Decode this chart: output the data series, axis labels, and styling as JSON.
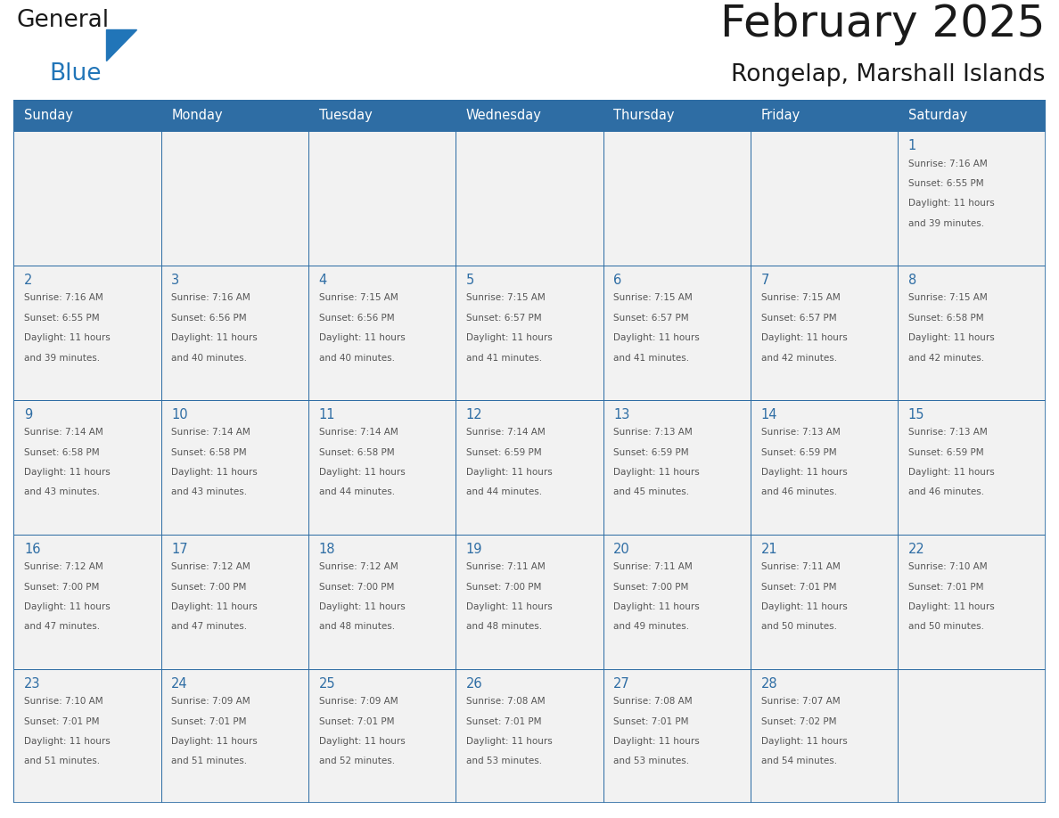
{
  "title": "February 2025",
  "subtitle": "Rongelap, Marshall Islands",
  "days_of_week": [
    "Sunday",
    "Monday",
    "Tuesday",
    "Wednesday",
    "Thursday",
    "Friday",
    "Saturday"
  ],
  "header_bg": "#2E6DA4",
  "header_text": "#FFFFFF",
  "cell_bg": "#F2F2F2",
  "text_color": "#555555",
  "date_color": "#2E6DA4",
  "border_color": "#2E6DA4",
  "title_color": "#1a1a1a",
  "logo_general_color": "#1a1a1a",
  "logo_blue_color": "#2175B8",
  "weeks": [
    [
      null,
      null,
      null,
      null,
      null,
      null,
      1
    ],
    [
      2,
      3,
      4,
      5,
      6,
      7,
      8
    ],
    [
      9,
      10,
      11,
      12,
      13,
      14,
      15
    ],
    [
      16,
      17,
      18,
      19,
      20,
      21,
      22
    ],
    [
      23,
      24,
      25,
      26,
      27,
      28,
      null
    ]
  ],
  "sun_data": {
    "1": {
      "rise": "7:16 AM",
      "set": "6:55 PM",
      "daylight": "11 hours and 39 minutes"
    },
    "2": {
      "rise": "7:16 AM",
      "set": "6:55 PM",
      "daylight": "11 hours and 39 minutes"
    },
    "3": {
      "rise": "7:16 AM",
      "set": "6:56 PM",
      "daylight": "11 hours and 40 minutes"
    },
    "4": {
      "rise": "7:15 AM",
      "set": "6:56 PM",
      "daylight": "11 hours and 40 minutes"
    },
    "5": {
      "rise": "7:15 AM",
      "set": "6:57 PM",
      "daylight": "11 hours and 41 minutes"
    },
    "6": {
      "rise": "7:15 AM",
      "set": "6:57 PM",
      "daylight": "11 hours and 41 minutes"
    },
    "7": {
      "rise": "7:15 AM",
      "set": "6:57 PM",
      "daylight": "11 hours and 42 minutes"
    },
    "8": {
      "rise": "7:15 AM",
      "set": "6:58 PM",
      "daylight": "11 hours and 42 minutes"
    },
    "9": {
      "rise": "7:14 AM",
      "set": "6:58 PM",
      "daylight": "11 hours and 43 minutes"
    },
    "10": {
      "rise": "7:14 AM",
      "set": "6:58 PM",
      "daylight": "11 hours and 43 minutes"
    },
    "11": {
      "rise": "7:14 AM",
      "set": "6:58 PM",
      "daylight": "11 hours and 44 minutes"
    },
    "12": {
      "rise": "7:14 AM",
      "set": "6:59 PM",
      "daylight": "11 hours and 44 minutes"
    },
    "13": {
      "rise": "7:13 AM",
      "set": "6:59 PM",
      "daylight": "11 hours and 45 minutes"
    },
    "14": {
      "rise": "7:13 AM",
      "set": "6:59 PM",
      "daylight": "11 hours and 46 minutes"
    },
    "15": {
      "rise": "7:13 AM",
      "set": "6:59 PM",
      "daylight": "11 hours and 46 minutes"
    },
    "16": {
      "rise": "7:12 AM",
      "set": "7:00 PM",
      "daylight": "11 hours and 47 minutes"
    },
    "17": {
      "rise": "7:12 AM",
      "set": "7:00 PM",
      "daylight": "11 hours and 47 minutes"
    },
    "18": {
      "rise": "7:12 AM",
      "set": "7:00 PM",
      "daylight": "11 hours and 48 minutes"
    },
    "19": {
      "rise": "7:11 AM",
      "set": "7:00 PM",
      "daylight": "11 hours and 48 minutes"
    },
    "20": {
      "rise": "7:11 AM",
      "set": "7:00 PM",
      "daylight": "11 hours and 49 minutes"
    },
    "21": {
      "rise": "7:11 AM",
      "set": "7:01 PM",
      "daylight": "11 hours and 50 minutes"
    },
    "22": {
      "rise": "7:10 AM",
      "set": "7:01 PM",
      "daylight": "11 hours and 50 minutes"
    },
    "23": {
      "rise": "7:10 AM",
      "set": "7:01 PM",
      "daylight": "11 hours and 51 minutes"
    },
    "24": {
      "rise": "7:09 AM",
      "set": "7:01 PM",
      "daylight": "11 hours and 51 minutes"
    },
    "25": {
      "rise": "7:09 AM",
      "set": "7:01 PM",
      "daylight": "11 hours and 52 minutes"
    },
    "26": {
      "rise": "7:08 AM",
      "set": "7:01 PM",
      "daylight": "11 hours and 53 minutes"
    },
    "27": {
      "rise": "7:08 AM",
      "set": "7:01 PM",
      "daylight": "11 hours and 53 minutes"
    },
    "28": {
      "rise": "7:07 AM",
      "set": "7:02 PM",
      "daylight": "11 hours and 54 minutes"
    }
  }
}
